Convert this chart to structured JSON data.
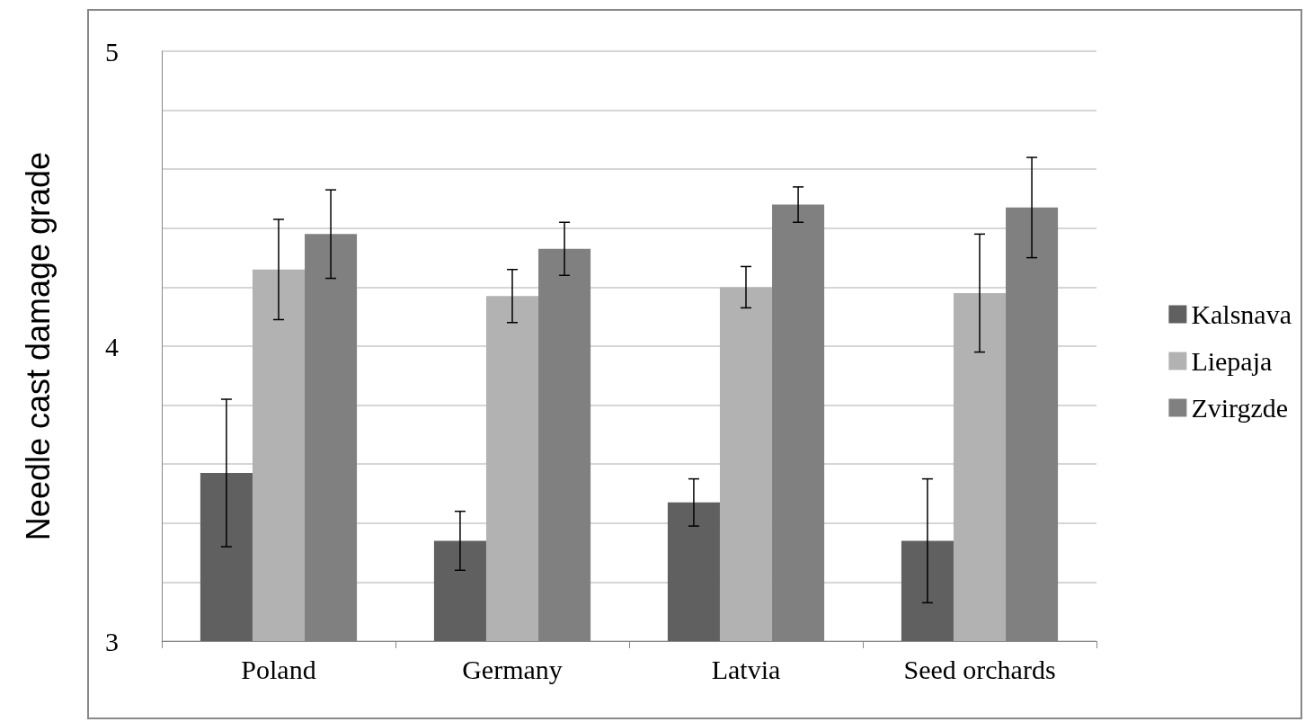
{
  "chart_data": {
    "type": "bar",
    "ylabel": "Needle cast damage grade",
    "categories": [
      "Poland",
      "Germany",
      "Latvia",
      "Seed orchards"
    ],
    "series": [
      {
        "name": "Kalsnava",
        "color": "#606060",
        "values": [
          3.57,
          3.34,
          3.47,
          3.34
        ],
        "errors": [
          0.25,
          0.1,
          0.08,
          0.21
        ]
      },
      {
        "name": "Liepaja",
        "color": "#b2b2b2",
        "values": [
          4.26,
          4.17,
          4.2,
          4.18
        ],
        "errors": [
          0.17,
          0.09,
          0.07,
          0.2
        ]
      },
      {
        "name": "Zvirgzde",
        "color": "#808080",
        "values": [
          4.38,
          4.33,
          4.48,
          4.47
        ],
        "errors": [
          0.15,
          0.09,
          0.06,
          0.17
        ]
      }
    ],
    "ylim": [
      3,
      5
    ],
    "yticks": [
      3,
      {
        "value": 3.2,
        "label": null
      },
      {
        "value": 3.4,
        "label": null
      },
      {
        "value": 3.6,
        "label": null
      },
      {
        "value": 3.8,
        "label": null
      },
      4,
      {
        "value": 4.2,
        "label": null
      },
      {
        "value": 4.4,
        "label": null
      },
      {
        "value": 4.6,
        "label": null
      },
      {
        "value": 4.8,
        "label": null
      },
      5
    ],
    "grid": "y",
    "legend": "right"
  }
}
